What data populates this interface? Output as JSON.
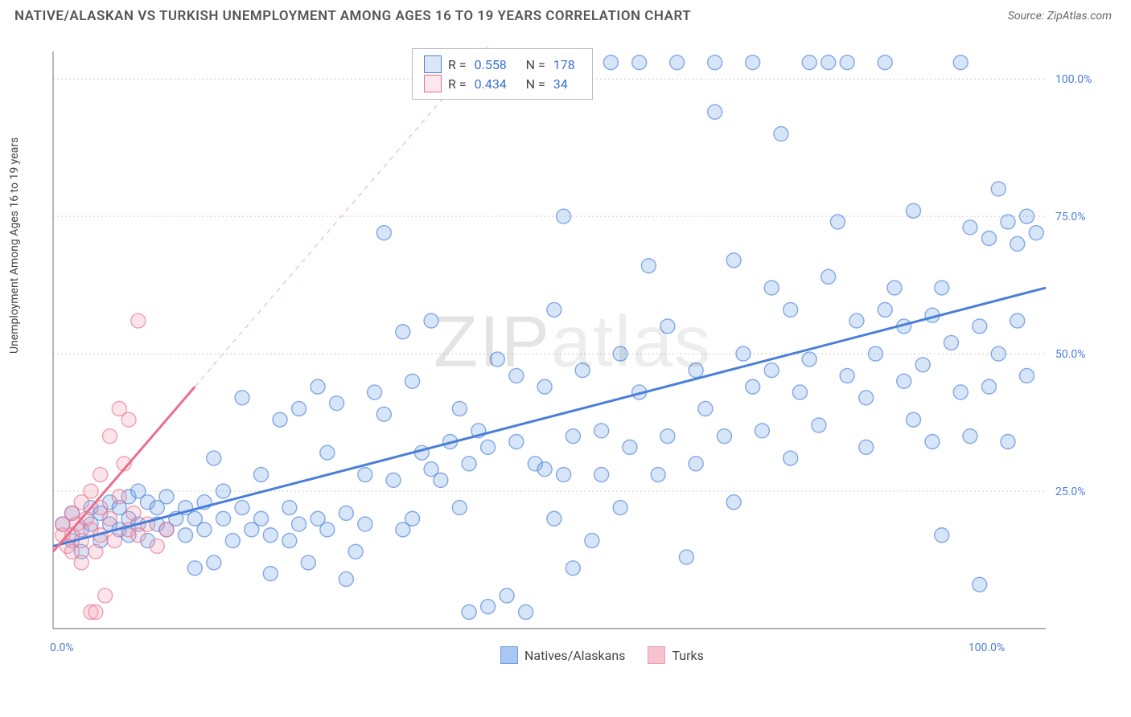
{
  "title": "NATIVE/ALASKAN VS TURKISH UNEMPLOYMENT AMONG AGES 16 TO 19 YEARS CORRELATION CHART",
  "source_label": "Source: ZipAtlas.com",
  "watermark": "ZIPatlas",
  "ylabel": "Unemployment Among Ages 16 to 19 years",
  "chart": {
    "type": "scatter",
    "xlim": [
      0,
      105
    ],
    "ylim": [
      0,
      105
    ],
    "x_ticks": [
      {
        "v": 0,
        "label": "0.0%"
      },
      {
        "v": 100,
        "label": "100.0%"
      }
    ],
    "y_ticks": [
      {
        "v": 25,
        "label": "25.0%"
      },
      {
        "v": 50,
        "label": "50.0%"
      },
      {
        "v": 75,
        "label": "75.0%"
      },
      {
        "v": 100,
        "label": "100.0%"
      }
    ],
    "grid_y": [
      25,
      50,
      75,
      100
    ],
    "background_color": "#ffffff",
    "grid_color": "#cccccc",
    "marker_radius": 9,
    "series": [
      {
        "name": "Natives/Alaskans",
        "color": "#6fa1e6",
        "stroke": "#4a7fd8",
        "R": "0.558",
        "N": "178",
        "trend": {
          "x1": 0,
          "y1": 15,
          "x2": 105,
          "y2": 62,
          "dash_to_x": 105,
          "dash_to_y": 62
        },
        "points": [
          [
            1,
            19
          ],
          [
            2,
            16
          ],
          [
            2,
            21
          ],
          [
            3,
            18
          ],
          [
            3,
            14
          ],
          [
            4,
            22
          ],
          [
            4,
            19
          ],
          [
            5,
            21
          ],
          [
            5,
            16
          ],
          [
            6,
            23
          ],
          [
            6,
            19
          ],
          [
            7,
            18
          ],
          [
            7,
            22
          ],
          [
            8,
            24
          ],
          [
            8,
            17
          ],
          [
            8,
            20
          ],
          [
            9,
            19
          ],
          [
            9,
            25
          ],
          [
            10,
            16
          ],
          [
            10,
            23
          ],
          [
            11,
            19
          ],
          [
            11,
            22
          ],
          [
            12,
            18
          ],
          [
            12,
            24
          ],
          [
            13,
            20
          ],
          [
            14,
            17
          ],
          [
            14,
            22
          ],
          [
            15,
            11
          ],
          [
            15,
            20
          ],
          [
            16,
            23
          ],
          [
            16,
            18
          ],
          [
            17,
            31
          ],
          [
            17,
            12
          ],
          [
            18,
            20
          ],
          [
            18,
            25
          ],
          [
            19,
            16
          ],
          [
            20,
            22
          ],
          [
            20,
            42
          ],
          [
            21,
            18
          ],
          [
            22,
            20
          ],
          [
            22,
            28
          ],
          [
            23,
            10
          ],
          [
            23,
            17
          ],
          [
            24,
            38
          ],
          [
            25,
            22
          ],
          [
            25,
            16
          ],
          [
            26,
            40
          ],
          [
            26,
            19
          ],
          [
            27,
            12
          ],
          [
            28,
            44
          ],
          [
            28,
            20
          ],
          [
            29,
            18
          ],
          [
            29,
            32
          ],
          [
            30,
            41
          ],
          [
            31,
            21
          ],
          [
            31,
            9
          ],
          [
            32,
            14
          ],
          [
            33,
            28
          ],
          [
            33,
            19
          ],
          [
            34,
            43
          ],
          [
            35,
            39
          ],
          [
            35,
            72
          ],
          [
            36,
            27
          ],
          [
            37,
            18
          ],
          [
            37,
            54
          ],
          [
            38,
            20
          ],
          [
            38,
            45
          ],
          [
            39,
            32
          ],
          [
            40,
            29
          ],
          [
            40,
            56
          ],
          [
            41,
            27
          ],
          [
            42,
            34
          ],
          [
            42,
            103
          ],
          [
            43,
            22
          ],
          [
            43,
            40
          ],
          [
            44,
            3
          ],
          [
            44,
            30
          ],
          [
            45,
            36
          ],
          [
            46,
            4
          ],
          [
            46,
            33
          ],
          [
            47,
            49
          ],
          [
            48,
            103
          ],
          [
            48,
            6
          ],
          [
            49,
            34
          ],
          [
            49,
            46
          ],
          [
            50,
            103
          ],
          [
            50,
            3
          ],
          [
            51,
            30
          ],
          [
            52,
            29
          ],
          [
            52,
            44
          ],
          [
            53,
            20
          ],
          [
            53,
            58
          ],
          [
            54,
            75
          ],
          [
            54,
            28
          ],
          [
            55,
            11
          ],
          [
            55,
            35
          ],
          [
            56,
            47
          ],
          [
            57,
            16
          ],
          [
            58,
            36
          ],
          [
            58,
            28
          ],
          [
            59,
            103
          ],
          [
            60,
            50
          ],
          [
            60,
            22
          ],
          [
            61,
            33
          ],
          [
            62,
            43
          ],
          [
            62,
            103
          ],
          [
            63,
            66
          ],
          [
            64,
            28
          ],
          [
            65,
            35
          ],
          [
            65,
            55
          ],
          [
            66,
            103
          ],
          [
            67,
            13
          ],
          [
            68,
            47
          ],
          [
            68,
            30
          ],
          [
            69,
            40
          ],
          [
            70,
            103
          ],
          [
            70,
            94
          ],
          [
            71,
            35
          ],
          [
            72,
            67
          ],
          [
            72,
            23
          ],
          [
            73,
            50
          ],
          [
            74,
            44
          ],
          [
            74,
            103
          ],
          [
            75,
            36
          ],
          [
            76,
            62
          ],
          [
            76,
            47
          ],
          [
            77,
            90
          ],
          [
            78,
            31
          ],
          [
            78,
            58
          ],
          [
            79,
            43
          ],
          [
            80,
            103
          ],
          [
            80,
            49
          ],
          [
            81,
            37
          ],
          [
            82,
            103
          ],
          [
            82,
            64
          ],
          [
            83,
            74
          ],
          [
            84,
            46
          ],
          [
            84,
            103
          ],
          [
            85,
            56
          ],
          [
            86,
            42
          ],
          [
            86,
            33
          ],
          [
            87,
            50
          ],
          [
            88,
            103
          ],
          [
            88,
            58
          ],
          [
            89,
            62
          ],
          [
            90,
            45
          ],
          [
            90,
            55
          ],
          [
            91,
            38
          ],
          [
            91,
            76
          ],
          [
            92,
            48
          ],
          [
            93,
            57
          ],
          [
            93,
            34
          ],
          [
            94,
            17
          ],
          [
            94,
            62
          ],
          [
            95,
            52
          ],
          [
            96,
            43
          ],
          [
            96,
            103
          ],
          [
            97,
            73
          ],
          [
            97,
            35
          ],
          [
            98,
            8
          ],
          [
            98,
            55
          ],
          [
            99,
            71
          ],
          [
            99,
            44
          ],
          [
            100,
            80
          ],
          [
            100,
            50
          ],
          [
            101,
            74
          ],
          [
            101,
            34
          ],
          [
            102,
            56
          ],
          [
            102,
            70
          ],
          [
            103,
            75
          ],
          [
            103,
            46
          ],
          [
            104,
            72
          ]
        ]
      },
      {
        "name": "Turks",
        "color": "#f5a0b4",
        "stroke": "#ec6e8c",
        "R": "0.434",
        "N": "34",
        "trend": {
          "x1": 0,
          "y1": 14,
          "x2": 15,
          "y2": 44,
          "dash_to_x": 55,
          "dash_to_y": 124
        },
        "points": [
          [
            1,
            17
          ],
          [
            1,
            19
          ],
          [
            1.5,
            15
          ],
          [
            2,
            21
          ],
          [
            2,
            14
          ],
          [
            2,
            17
          ],
          [
            2.5,
            19
          ],
          [
            3,
            23
          ],
          [
            3,
            16
          ],
          [
            3,
            12
          ],
          [
            3.5,
            20
          ],
          [
            4,
            18
          ],
          [
            4,
            25
          ],
          [
            4.5,
            14
          ],
          [
            4,
            3
          ],
          [
            5,
            22
          ],
          [
            5,
            17
          ],
          [
            5,
            28
          ],
          [
            5.5,
            6
          ],
          [
            6,
            20
          ],
          [
            6,
            35
          ],
          [
            6.5,
            16
          ],
          [
            7,
            40
          ],
          [
            7,
            24
          ],
          [
            7.5,
            30
          ],
          [
            8,
            18
          ],
          [
            8,
            38
          ],
          [
            8.5,
            21
          ],
          [
            9,
            17
          ],
          [
            9,
            56
          ],
          [
            10,
            19
          ],
          [
            11,
            15
          ],
          [
            12,
            18
          ],
          [
            4.5,
            3
          ]
        ]
      }
    ]
  },
  "legend_bottom": [
    {
      "label": "Natives/Alaskans",
      "color": "#a9c7f2",
      "stroke": "#6f9fe0"
    },
    {
      "label": "Turks",
      "color": "#f7c2cf",
      "stroke": "#ec9eb2"
    }
  ]
}
